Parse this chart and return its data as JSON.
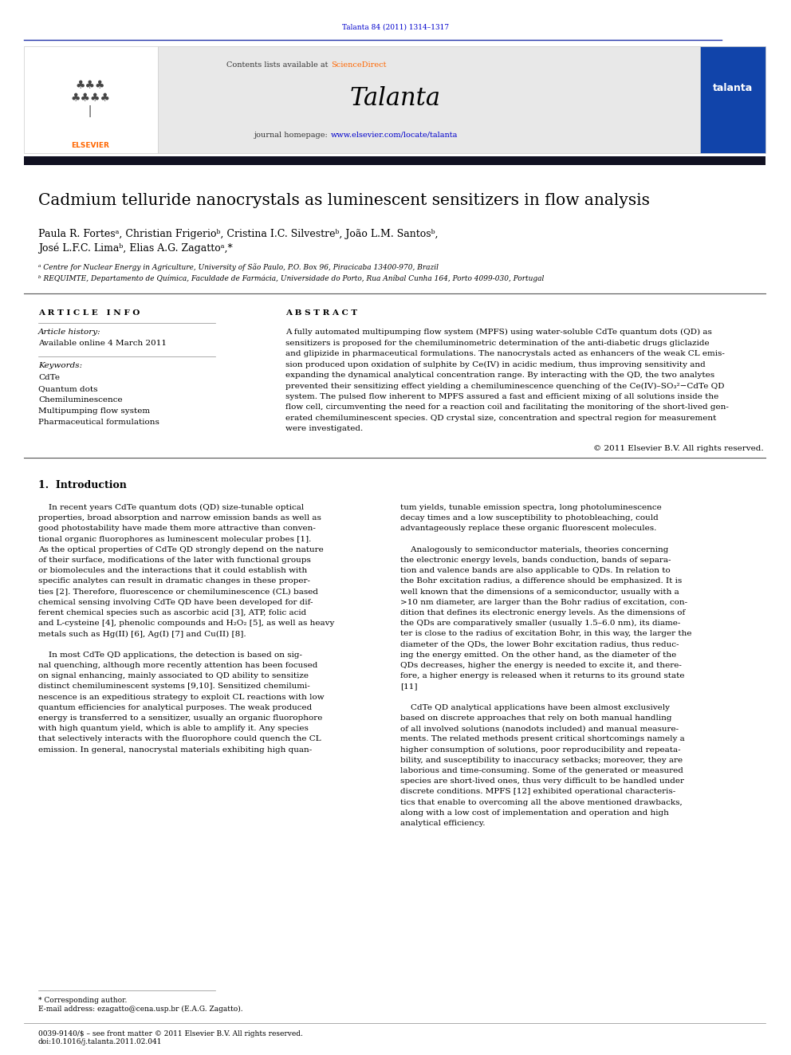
{
  "page_width": 9.92,
  "page_height": 13.23,
  "bg_color": "#ffffff",
  "top_citation": "Talanta 84 (2011) 1314–1317",
  "journal_name": "Talanta",
  "contents_text": "Contents lists available at ScienceDirect",
  "journal_url": "journal homepage: www.elsevier.com/locate/talanta",
  "header_bg": "#e8e8e8",
  "dark_bar_color": "#1a1a2e",
  "article_title": "Cadmium telluride nanocrystals as luminescent sensitizers in flow analysis",
  "affil_a": "ᵃ Centre for Nuclear Energy in Agriculture, University of São Paulo, P.O. Box 96, Piracicaba 13400-970, Brazil",
  "affil_b": "ᵇ REQUIMTE, Departamento de Química, Faculdade de Farmácia, Universidade do Porto, Rua Aníbal Cunha 164, Porto 4099-030, Portugal",
  "article_info_header": "A R T I C L E   I N F O",
  "abstract_header": "A B S T R A C T",
  "copyright": "© 2011 Elsevier B.V. All rights reserved.",
  "bottom_text": "0039-9140/$ – see front matter © 2011 Elsevier B.V. All rights reserved.\ndoi:10.1016/j.talanta.2011.02.041",
  "link_color": "#0000cc",
  "science_direct_color": "#ff6600",
  "elsevier_orange": "#FF6600",
  "abstract_lines": [
    "A fully automated multipumping flow system (MPFS) using water-soluble CdTe quantum dots (QD) as",
    "sensitizers is proposed for the chemiluminometric determination of the anti-diabetic drugs gliclazide",
    "and glipizide in pharmaceutical formulations. The nanocrystals acted as enhancers of the weak CL emis-",
    "sion produced upon oxidation of sulphite by Ce(IV) in acidic medium, thus improving sensitivity and",
    "expanding the dynamical analytical concentration range. By interacting with the QD, the two analytes",
    "prevented their sensitizing effect yielding a chemiluminescence quenching of the Ce(IV)–SO₃²−CdTe QD",
    "system. The pulsed flow inherent to MPFS assured a fast and efficient mixing of all solutions inside the",
    "flow cell, circumventing the need for a reaction coil and facilitating the monitoring of the short-lived gen-",
    "erated chemiluminescent species. QD crystal size, concentration and spectral region for measurement",
    "were investigated."
  ],
  "intro_left_lines": [
    "    In recent years CdTe quantum dots (QD) size-tunable optical",
    "properties, broad absorption and narrow emission bands as well as",
    "good photostability have made them more attractive than conven-",
    "tional organic fluorophores as luminescent molecular probes [1].",
    "As the optical properties of CdTe QD strongly depend on the nature",
    "of their surface, modifications of the later with functional groups",
    "or biomolecules and the interactions that it could establish with",
    "specific analytes can result in dramatic changes in these proper-",
    "ties [2]. Therefore, fluorescence or chemiluminescence (CL) based",
    "chemical sensing involving CdTe QD have been developed for dif-",
    "ferent chemical species such as ascorbic acid [3], ATP, folic acid",
    "and L-cysteine [4], phenolic compounds and H₂O₂ [5], as well as heavy",
    "metals such as Hg(II) [6], Ag(I) [7] and Cu(II) [8].",
    "",
    "    In most CdTe QD applications, the detection is based on sig-",
    "nal quenching, although more recently attention has been focused",
    "on signal enhancing, mainly associated to QD ability to sensitize",
    "distinct chemiluminescent systems [9,10]. Sensitized chemilumi-",
    "nescence is an expeditious strategy to exploit CL reactions with low",
    "quantum efficiencies for analytical purposes. The weak produced",
    "energy is transferred to a sensitizer, usually an organic fluorophore",
    "with high quantum yield, which is able to amplify it. Any species",
    "that selectively interacts with the fluorophore could quench the CL",
    "emission. In general, nanocrystal materials exhibiting high quan-"
  ],
  "intro_right_lines": [
    "tum yields, tunable emission spectra, long photoluminescence",
    "decay times and a low susceptibility to photobleaching, could",
    "advantageously replace these organic fluorescent molecules.",
    "",
    "    Analogously to semiconductor materials, theories concerning",
    "the electronic energy levels, bands conduction, bands of separa-",
    "tion and valence bands are also applicable to QDs. In relation to",
    "the Bohr excitation radius, a difference should be emphasized. It is",
    "well known that the dimensions of a semiconductor, usually with a",
    ">10 nm diameter, are larger than the Bohr radius of excitation, con-",
    "dition that defines its electronic energy levels. As the dimensions of",
    "the QDs are comparatively smaller (usually 1.5–6.0 nm), its diame-",
    "ter is close to the radius of excitation Bohr, in this way, the larger the",
    "diameter of the QDs, the lower Bohr excitation radius, thus reduc-",
    "ing the energy emitted. On the other hand, as the diameter of the",
    "QDs decreases, higher the energy is needed to excite it, and there-",
    "fore, a higher energy is released when it returns to its ground state",
    "[11]",
    "",
    "    CdTe QD analytical applications have been almost exclusively",
    "based on discrete approaches that rely on both manual handling",
    "of all involved solutions (nanodots included) and manual measure-",
    "ments. The related methods present critical shortcomings namely a",
    "higher consumption of solutions, poor reproducibility and repeata-",
    "bility, and susceptibility to inaccuracy setbacks; moreover, they are",
    "laborious and time-consuming. Some of the generated or measured",
    "species are short-lived ones, thus very difficult to be handled under",
    "discrete conditions. MPFS [12] exhibited operational characteris-",
    "tics that enable to overcoming all the above mentioned drawbacks,",
    "along with a low cost of implementation and operation and high",
    "analytical efficiency."
  ],
  "keywords": [
    "CdTe",
    "Quantum dots",
    "Chemiluminescence",
    "Multipumping flow system",
    "Pharmaceutical formulations"
  ]
}
